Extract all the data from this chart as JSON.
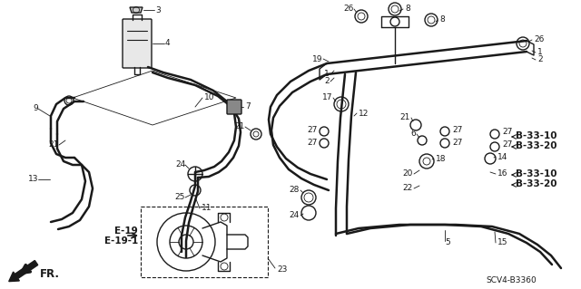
{
  "bg_color": "#ffffff",
  "line_color": "#1a1a1a",
  "diagram_code": "SCV4-B3360",
  "fr_label": "FR.",
  "ref_labels": {
    "b33_10_1": "B-33-10",
    "b33_20_1": "B-33-20",
    "b33_10_2": "B-33-10",
    "b33_20_2": "B-33-20",
    "e19": "E-19",
    "e19_1": "E-19-1"
  },
  "label_fontsize": 6.5,
  "bold_label_fontsize": 7.5
}
